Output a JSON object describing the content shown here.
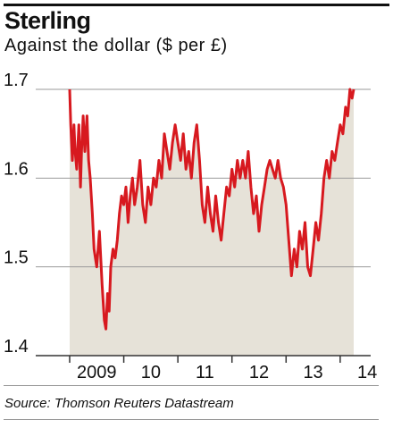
{
  "title": "Sterling",
  "subtitle": "Against the dollar ($ per £)",
  "source": "Source: Thomson Reuters Datastream",
  "colors": {
    "line": "#d7191f",
    "area": "#e6e2d8",
    "grid": "#9a9a9a",
    "text": "#111111"
  },
  "chart_data": {
    "type": "line",
    "title": "Sterling",
    "subtitle": "Against the dollar ($ per £)",
    "xlabel": "",
    "ylabel": "",
    "ylim": [
      1.4,
      1.7
    ],
    "xlim": [
      2009.0,
      2014.25
    ],
    "yticks": [
      1.4,
      1.5,
      1.6,
      1.7
    ],
    "ytick_labels": [
      "1.4",
      "1.5",
      "1.6",
      "1.7"
    ],
    "xtick_labels": [
      {
        "label": "2009",
        "x": 2009.0
      },
      {
        "label": "10",
        "x": 2010.0
      },
      {
        "label": "11",
        "x": 2011.0
      },
      {
        "label": "12",
        "x": 2012.0
      },
      {
        "label": "13",
        "x": 2013.0
      },
      {
        "label": "14",
        "x": 2014.0
      }
    ],
    "grid": true,
    "series": [
      {
        "values": [
          [
            2009.0,
            1.7
          ],
          [
            2009.02,
            1.66
          ],
          [
            2009.05,
            1.62
          ],
          [
            2009.08,
            1.66
          ],
          [
            2009.1,
            1.63
          ],
          [
            2009.13,
            1.61
          ],
          [
            2009.17,
            1.66
          ],
          [
            2009.2,
            1.59
          ],
          [
            2009.22,
            1.63
          ],
          [
            2009.25,
            1.67
          ],
          [
            2009.28,
            1.63
          ],
          [
            2009.32,
            1.67
          ],
          [
            2009.35,
            1.62
          ],
          [
            2009.38,
            1.6
          ],
          [
            2009.42,
            1.56
          ],
          [
            2009.45,
            1.52
          ],
          [
            2009.5,
            1.5
          ],
          [
            2009.55,
            1.54
          ],
          [
            2009.6,
            1.48
          ],
          [
            2009.64,
            1.44
          ],
          [
            2009.67,
            1.43
          ],
          [
            2009.7,
            1.47
          ],
          [
            2009.73,
            1.45
          ],
          [
            2009.76,
            1.5
          ],
          [
            2009.8,
            1.52
          ],
          [
            2009.84,
            1.51
          ],
          [
            2009.88,
            1.53
          ],
          [
            2009.92,
            1.56
          ],
          [
            2009.96,
            1.58
          ],
          [
            2010.0,
            1.57
          ],
          [
            2010.04,
            1.59
          ],
          [
            2010.08,
            1.55
          ],
          [
            2010.12,
            1.58
          ],
          [
            2010.16,
            1.6
          ],
          [
            2010.2,
            1.57
          ],
          [
            2010.25,
            1.59
          ],
          [
            2010.3,
            1.62
          ],
          [
            2010.35,
            1.57
          ],
          [
            2010.4,
            1.55
          ],
          [
            2010.45,
            1.59
          ],
          [
            2010.5,
            1.57
          ],
          [
            2010.55,
            1.6
          ],
          [
            2010.6,
            1.59
          ],
          [
            2010.65,
            1.62
          ],
          [
            2010.7,
            1.6
          ],
          [
            2010.75,
            1.65
          ],
          [
            2010.8,
            1.63
          ],
          [
            2010.85,
            1.61
          ],
          [
            2010.9,
            1.64
          ],
          [
            2010.95,
            1.66
          ],
          [
            2011.0,
            1.64
          ],
          [
            2011.05,
            1.62
          ],
          [
            2011.1,
            1.65
          ],
          [
            2011.15,
            1.61
          ],
          [
            2011.2,
            1.63
          ],
          [
            2011.25,
            1.6
          ],
          [
            2011.3,
            1.64
          ],
          [
            2011.35,
            1.66
          ],
          [
            2011.4,
            1.62
          ],
          [
            2011.45,
            1.57
          ],
          [
            2011.5,
            1.55
          ],
          [
            2011.55,
            1.59
          ],
          [
            2011.6,
            1.56
          ],
          [
            2011.65,
            1.54
          ],
          [
            2011.7,
            1.58
          ],
          [
            2011.75,
            1.55
          ],
          [
            2011.8,
            1.53
          ],
          [
            2011.85,
            1.56
          ],
          [
            2011.9,
            1.59
          ],
          [
            2011.95,
            1.58
          ],
          [
            2012.0,
            1.61
          ],
          [
            2012.05,
            1.59
          ],
          [
            2012.1,
            1.62
          ],
          [
            2012.15,
            1.6
          ],
          [
            2012.2,
            1.62
          ],
          [
            2012.25,
            1.6
          ],
          [
            2012.3,
            1.63
          ],
          [
            2012.35,
            1.59
          ],
          [
            2012.4,
            1.56
          ],
          [
            2012.45,
            1.58
          ],
          [
            2012.5,
            1.54
          ],
          [
            2012.55,
            1.57
          ],
          [
            2012.6,
            1.59
          ],
          [
            2012.65,
            1.61
          ],
          [
            2012.7,
            1.62
          ],
          [
            2012.75,
            1.61
          ],
          [
            2012.8,
            1.6
          ],
          [
            2012.85,
            1.62
          ],
          [
            2012.9,
            1.6
          ],
          [
            2012.95,
            1.59
          ],
          [
            2013.0,
            1.57
          ],
          [
            2013.05,
            1.53
          ],
          [
            2013.1,
            1.49
          ],
          [
            2013.15,
            1.52
          ],
          [
            2013.2,
            1.5
          ],
          [
            2013.25,
            1.54
          ],
          [
            2013.3,
            1.52
          ],
          [
            2013.35,
            1.55
          ],
          [
            2013.4,
            1.5
          ],
          [
            2013.45,
            1.49
          ],
          [
            2013.5,
            1.52
          ],
          [
            2013.55,
            1.55
          ],
          [
            2013.6,
            1.53
          ],
          [
            2013.65,
            1.56
          ],
          [
            2013.7,
            1.6
          ],
          [
            2013.75,
            1.62
          ],
          [
            2013.8,
            1.6
          ],
          [
            2013.85,
            1.63
          ],
          [
            2013.9,
            1.62
          ],
          [
            2013.95,
            1.64
          ],
          [
            2014.0,
            1.66
          ],
          [
            2014.05,
            1.65
          ],
          [
            2014.1,
            1.68
          ],
          [
            2014.14,
            1.67
          ],
          [
            2014.18,
            1.7
          ],
          [
            2014.22,
            1.69
          ],
          [
            2014.25,
            1.7
          ]
        ]
      }
    ]
  }
}
